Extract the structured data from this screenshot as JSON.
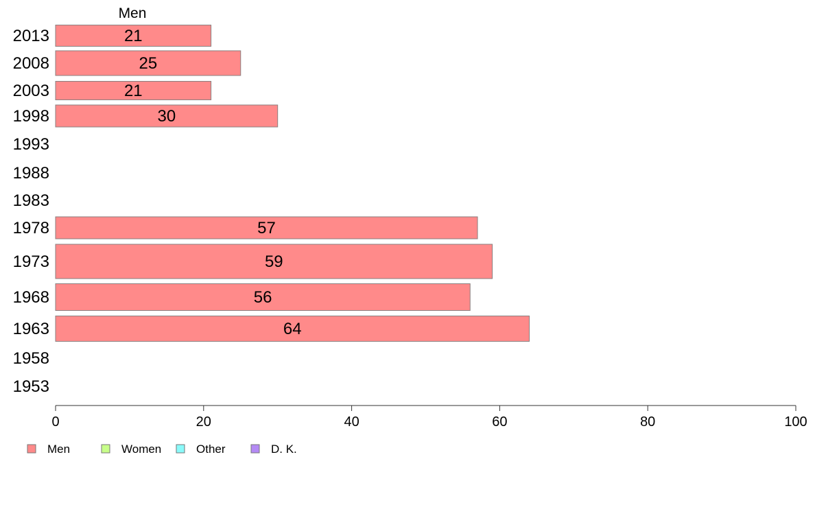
{
  "chart_data": {
    "type": "bar",
    "orientation": "horizontal",
    "title": "",
    "series_title": "Men",
    "xlabel": "",
    "ylabel": "",
    "xlim": [
      0,
      100
    ],
    "x_ticks": [
      "0",
      "20",
      "40",
      "60",
      "80",
      "100"
    ],
    "grid": false,
    "categories": [
      "2013",
      "2008",
      "2003",
      "1998",
      "1993",
      "1988",
      "1983",
      "1978",
      "1973",
      "1968",
      "1963",
      "1958",
      "1953"
    ],
    "series": [
      {
        "name": "Men",
        "color": "#ff8a8a",
        "values": [
          21,
          25,
          21,
          30,
          null,
          null,
          null,
          57,
          59,
          56,
          64,
          null,
          null
        ],
        "labels": [
          "21",
          "25",
          "21",
          "30",
          "",
          "",
          "",
          "57",
          "59",
          "56",
          "64",
          "",
          ""
        ]
      }
    ],
    "legend": {
      "position": "bottom-left",
      "items": [
        {
          "label": "Men",
          "color": "#ff8a8a"
        },
        {
          "label": "Women",
          "color": "#c8ff8a"
        },
        {
          "label": "Other",
          "color": "#8afafa"
        },
        {
          "label": "D. K.",
          "color": "#b48af5"
        }
      ]
    }
  }
}
